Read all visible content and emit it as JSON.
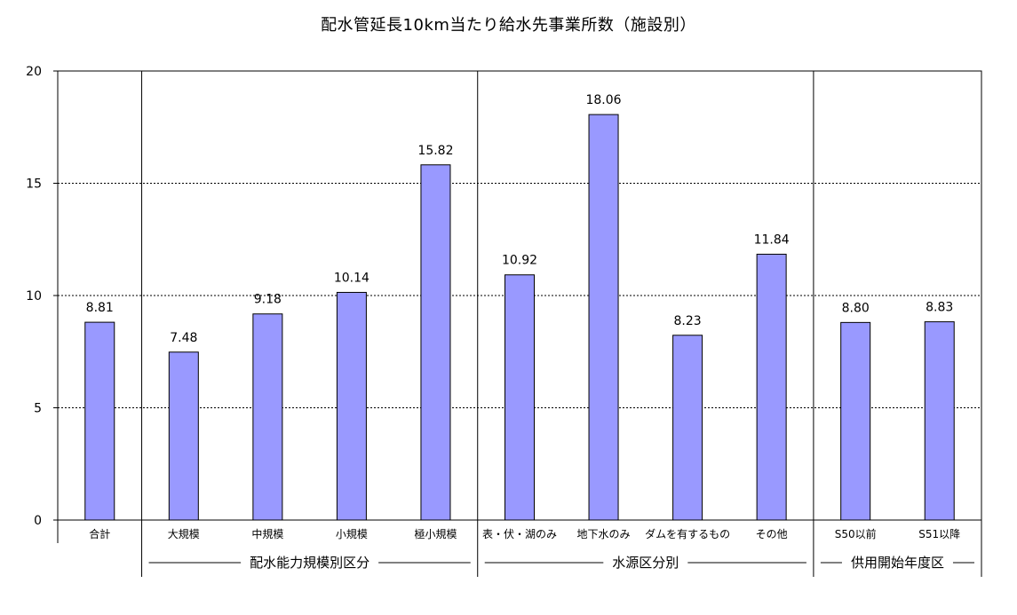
{
  "chart_data": {
    "type": "bar",
    "title": "配水管延長10km当たり給水先事業所数（施設別）",
    "xlabel": "",
    "ylabel": "",
    "ylim": [
      0,
      20
    ],
    "yticks": [
      0,
      5,
      10,
      15,
      20
    ],
    "grid": true,
    "legend": "none",
    "bar_color": "#9999ff",
    "bar_edge_color": "#000000",
    "categories": [
      "合計",
      "大規模",
      "中規模",
      "小規模",
      "極小規模",
      "表・伏・湖のみ",
      "地下水のみ",
      "ダムを有するもの",
      "その他",
      "S50以前",
      "S51以降"
    ],
    "values": [
      8.81,
      7.48,
      9.18,
      10.14,
      15.82,
      10.92,
      18.06,
      8.23,
      11.84,
      8.8,
      8.83
    ],
    "value_labels": [
      "8.81",
      "7.48",
      "9.18",
      "10.14",
      "15.82",
      "10.92",
      "18.06",
      "8.23",
      "11.84",
      "8.80",
      "8.83"
    ],
    "groups": [
      {
        "label": "配水能力規模別区分",
        "from": 1,
        "to": 4
      },
      {
        "label": "水源区分別",
        "from": 5,
        "to": 8
      },
      {
        "label": "供用開始年度区",
        "from": 9,
        "to": 10
      }
    ]
  }
}
